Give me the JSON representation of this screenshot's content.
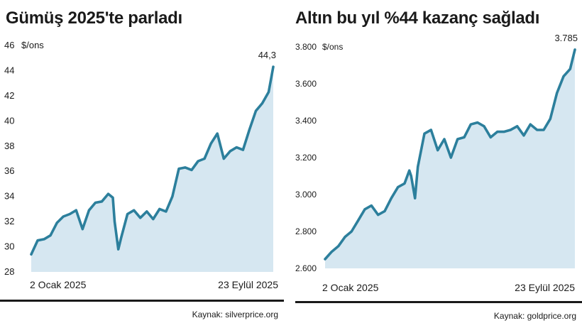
{
  "chart_data": [
    {
      "type": "area",
      "title": "Gümüş 2025'te parladı",
      "unit": "$/ons",
      "x_start_label": "2 Ocak 2025",
      "x_end_label": "23 Eylül 2025",
      "y_ticks": [
        "28",
        "30",
        "32",
        "34",
        "36",
        "38",
        "40",
        "42",
        "44",
        "46"
      ],
      "ylim": [
        28,
        46
      ],
      "last_value_label": "44,3",
      "source": "Kaynak: silverprice.org",
      "line_color": "#2c7f9c",
      "fill_color": "#d6e7f1",
      "x": [
        "2025-01-02",
        "2025-01-09",
        "2025-01-16",
        "2025-01-23",
        "2025-01-30",
        "2025-02-06",
        "2025-02-13",
        "2025-02-20",
        "2025-02-27",
        "2025-03-06",
        "2025-03-13",
        "2025-03-20",
        "2025-03-27",
        "2025-04-01",
        "2025-04-03",
        "2025-04-07",
        "2025-04-10",
        "2025-04-17",
        "2025-04-24",
        "2025-05-01",
        "2025-05-08",
        "2025-05-15",
        "2025-05-22",
        "2025-05-29",
        "2025-06-05",
        "2025-06-12",
        "2025-06-19",
        "2025-06-26",
        "2025-07-03",
        "2025-07-10",
        "2025-07-17",
        "2025-07-24",
        "2025-07-31",
        "2025-08-07",
        "2025-08-14",
        "2025-08-21",
        "2025-08-28",
        "2025-09-04",
        "2025-09-11",
        "2025-09-18",
        "2025-09-23"
      ],
      "values": [
        29.4,
        30.5,
        30.6,
        30.9,
        31.9,
        32.4,
        32.6,
        32.9,
        31.4,
        32.9,
        33.5,
        33.6,
        34.2,
        33.9,
        32.0,
        29.8,
        30.7,
        32.6,
        32.9,
        32.3,
        32.8,
        32.2,
        33.0,
        32.8,
        34.0,
        36.2,
        36.3,
        36.1,
        36.8,
        37.0,
        38.2,
        39.0,
        37.0,
        37.6,
        37.9,
        37.7,
        39.3,
        40.8,
        41.4,
        42.3,
        44.3
      ]
    },
    {
      "type": "area",
      "title": "Altın bu yıl %44 kazanç sağladı",
      "unit": "$/ons",
      "x_start_label": "2 Ocak 2025",
      "x_end_label": "23 Eylül 2025",
      "y_ticks": [
        "2.600",
        "2.800",
        "3.000",
        "3.200",
        "3.400",
        "3.600",
        "3.800"
      ],
      "ylim": [
        2600,
        3800
      ],
      "last_value_label": "3.785",
      "source": "Kaynak: goldprice.org",
      "line_color": "#2c7f9c",
      "fill_color": "#d6e7f1",
      "x": [
        "2025-01-02",
        "2025-01-09",
        "2025-01-16",
        "2025-01-23",
        "2025-01-30",
        "2025-02-06",
        "2025-02-13",
        "2025-02-20",
        "2025-02-27",
        "2025-03-06",
        "2025-03-13",
        "2025-03-20",
        "2025-03-27",
        "2025-04-01",
        "2025-04-03",
        "2025-04-07",
        "2025-04-10",
        "2025-04-17",
        "2025-04-24",
        "2025-05-01",
        "2025-05-08",
        "2025-05-15",
        "2025-05-22",
        "2025-05-29",
        "2025-06-05",
        "2025-06-12",
        "2025-06-19",
        "2025-06-26",
        "2025-07-03",
        "2025-07-10",
        "2025-07-17",
        "2025-07-24",
        "2025-07-31",
        "2025-08-07",
        "2025-08-14",
        "2025-08-21",
        "2025-08-28",
        "2025-09-04",
        "2025-09-11",
        "2025-09-18",
        "2025-09-23"
      ],
      "values": [
        2650,
        2690,
        2720,
        2770,
        2800,
        2860,
        2920,
        2940,
        2890,
        2910,
        2980,
        3040,
        3060,
        3130,
        3100,
        2980,
        3150,
        3330,
        3350,
        3240,
        3300,
        3200,
        3300,
        3310,
        3380,
        3390,
        3370,
        3310,
        3340,
        3340,
        3350,
        3370,
        3320,
        3380,
        3350,
        3350,
        3410,
        3550,
        3640,
        3680,
        3785
      ]
    }
  ]
}
